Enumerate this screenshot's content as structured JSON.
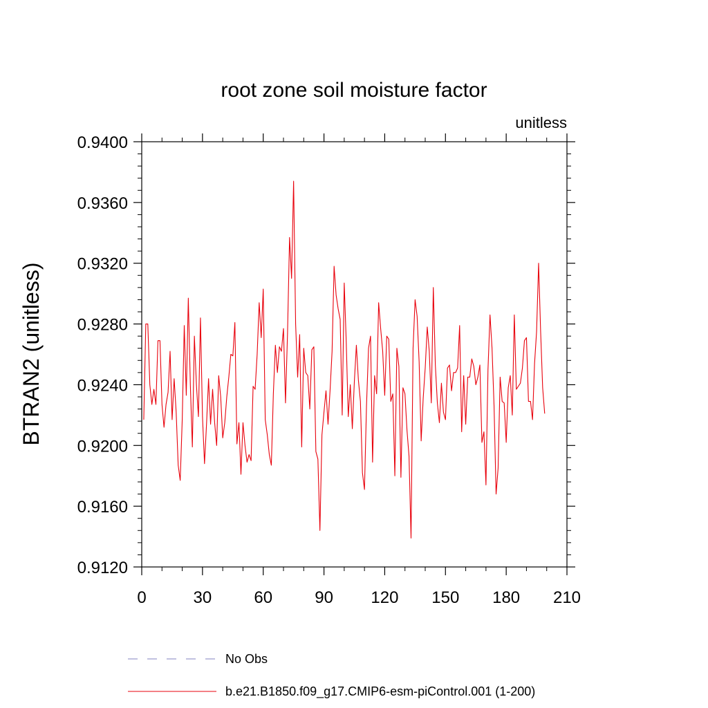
{
  "chart_data": {
    "type": "line",
    "title": "root zone soil moisture factor",
    "units_label": "unitless",
    "ylabel": "BTRAN2  (unitless)",
    "xlabel": "",
    "xlim": [
      0,
      210
    ],
    "ylim": [
      0.912,
      0.94
    ],
    "x_ticks": [
      0,
      30,
      60,
      90,
      120,
      150,
      180,
      210
    ],
    "x_tick_labels": [
      "0",
      "30",
      "60",
      "90",
      "120",
      "150",
      "180",
      "210"
    ],
    "y_ticks": [
      0.912,
      0.916,
      0.92,
      0.924,
      0.928,
      0.932,
      0.936,
      0.94
    ],
    "y_tick_labels": [
      "0.9120",
      "0.9160",
      "0.9200",
      "0.9240",
      "0.9280",
      "0.9320",
      "0.9360",
      "0.9400"
    ],
    "grid": false,
    "legend_position": "bottom",
    "legend": [
      {
        "label": "No Obs",
        "color": "#8080c0",
        "dashed": true
      },
      {
        "label": "b.e21.B1850.f09_g17.CMIP6-esm-piControl.001 (1-200)",
        "color": "#e8000b",
        "dashed": false
      }
    ],
    "series": [
      {
        "name": "b.e21.B1850.f09_g17.CMIP6-esm-piControl.001 (1-200)",
        "color": "#e8000b",
        "x_start": 1,
        "x_step": 1,
        "values": [
          0.9217,
          0.928,
          0.928,
          0.924,
          0.9227,
          0.9237,
          0.9227,
          0.9269,
          0.9269,
          0.9227,
          0.9212,
          0.9227,
          0.9235,
          0.9262,
          0.9217,
          0.9244,
          0.9222,
          0.9187,
          0.9177,
          0.9217,
          0.9279,
          0.9233,
          0.9297,
          0.924,
          0.9199,
          0.9272,
          0.924,
          0.9219,
          0.9284,
          0.9219,
          0.9188,
          0.9214,
          0.9244,
          0.9214,
          0.9237,
          0.9215,
          0.92,
          0.9246,
          0.9232,
          0.9205,
          0.9215,
          0.9232,
          0.9245,
          0.926,
          0.9259,
          0.9281,
          0.9201,
          0.9215,
          0.9181,
          0.9215,
          0.92,
          0.9189,
          0.9194,
          0.919,
          0.9239,
          0.9237,
          0.926,
          0.9294,
          0.9271,
          0.9303,
          0.9217,
          0.9207,
          0.9194,
          0.9187,
          0.9234,
          0.9266,
          0.9248,
          0.9265,
          0.9262,
          0.9277,
          0.9228,
          0.9274,
          0.9337,
          0.931,
          0.9374,
          0.928,
          0.9245,
          0.9273,
          0.9199,
          0.9264,
          0.9248,
          0.9246,
          0.9224,
          0.9263,
          0.9265,
          0.9196,
          0.9191,
          0.9144,
          0.9207,
          0.9222,
          0.9236,
          0.9214,
          0.9236,
          0.9262,
          0.9318,
          0.9299,
          0.929,
          0.9283,
          0.922,
          0.9307,
          0.9268,
          0.9219,
          0.924,
          0.9211,
          0.9242,
          0.9266,
          0.9243,
          0.9229,
          0.9182,
          0.9171,
          0.9226,
          0.9264,
          0.9272,
          0.9189,
          0.9246,
          0.9234,
          0.9294,
          0.9277,
          0.9262,
          0.9233,
          0.9272,
          0.927,
          0.9229,
          0.9234,
          0.918,
          0.9264,
          0.9252,
          0.9179,
          0.9238,
          0.9234,
          0.921,
          0.9193,
          0.9139,
          0.9264,
          0.9296,
          0.9285,
          0.9255,
          0.9203,
          0.9231,
          0.9251,
          0.9278,
          0.9262,
          0.9228,
          0.9304,
          0.9253,
          0.9228,
          0.9215,
          0.9241,
          0.9222,
          0.9217,
          0.9251,
          0.9253,
          0.9236,
          0.9248,
          0.9248,
          0.9251,
          0.9279,
          0.9209,
          0.9246,
          0.9214,
          0.9245,
          0.9245,
          0.9257,
          0.9252,
          0.924,
          0.9245,
          0.9253,
          0.9202,
          0.9209,
          0.9174,
          0.925,
          0.9286,
          0.9264,
          0.9226,
          0.9168,
          0.9185,
          0.9245,
          0.9229,
          0.9228,
          0.9202,
          0.9238,
          0.9246,
          0.922,
          0.9286,
          0.9237,
          0.9239,
          0.9241,
          0.9251,
          0.9269,
          0.9271,
          0.9229,
          0.9229,
          0.9217,
          0.9254,
          0.9275,
          0.932,
          0.9275,
          0.9238,
          0.9221
        ]
      }
    ]
  }
}
